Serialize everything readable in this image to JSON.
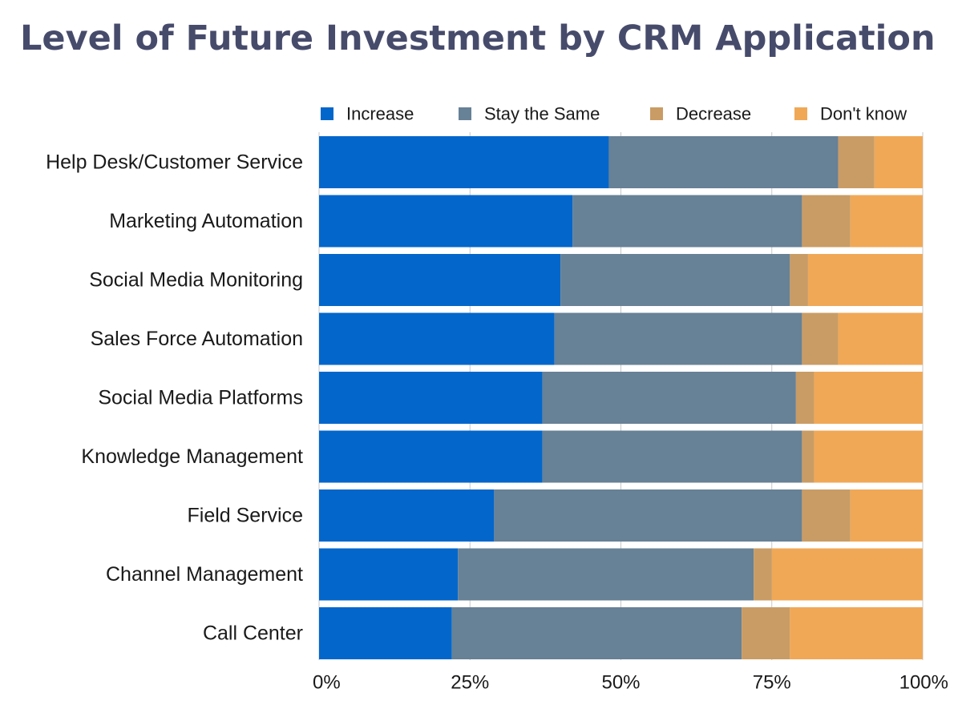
{
  "chart_data": {
    "type": "bar",
    "orientation": "horizontal",
    "stacked": true,
    "title": "Level of Future Investment by CRM Application",
    "categories": [
      "Help Desk/Customer Service",
      "Marketing Automation",
      "Social Media Monitoring",
      "Sales Force Automation",
      "Social Media Platforms",
      "Knowledge Management",
      "Field Service",
      "Channel Management",
      "Call Center"
    ],
    "series": [
      {
        "name": "Increase",
        "color": "#0366cb",
        "values": [
          48,
          42,
          40,
          39,
          37,
          37,
          29,
          23,
          22
        ]
      },
      {
        "name": "Stay the Same",
        "color": "#678196",
        "values": [
          38,
          38,
          38,
          41,
          42,
          43,
          51,
          49,
          48
        ]
      },
      {
        "name": "Decrease",
        "color": "#c99c65",
        "values": [
          6,
          8,
          3,
          6,
          3,
          2,
          8,
          3,
          8
        ]
      },
      {
        "name": "Don't know",
        "color": "#f0a857",
        "values": [
          8,
          12,
          19,
          14,
          18,
          18,
          12,
          25,
          22
        ]
      }
    ],
    "xlim": [
      0,
      100
    ],
    "x_ticks": [
      "0%",
      "25%",
      "50%",
      "75%",
      "100%"
    ],
    "x_tick_values": [
      0,
      25,
      50,
      75,
      100
    ],
    "grid": true,
    "legend_position": "top"
  }
}
